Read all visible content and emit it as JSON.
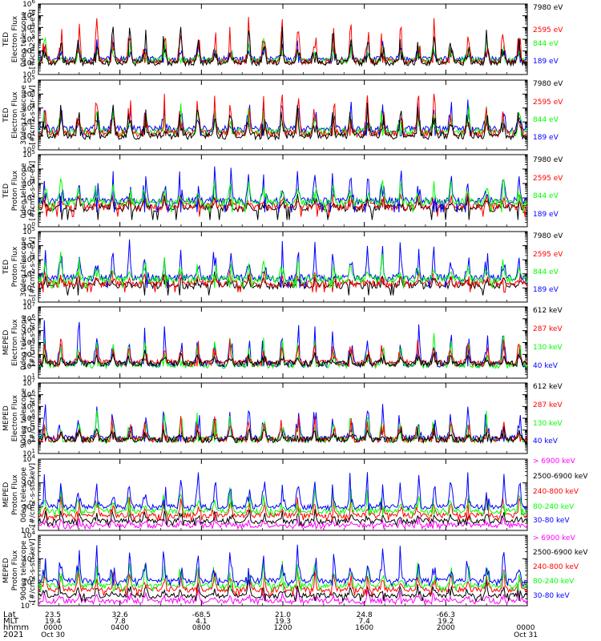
{
  "colors": {
    "black": "#000000",
    "red": "#ff0000",
    "green": "#00ff00",
    "blue": "#0000ff",
    "magenta": "#ff00ff"
  },
  "chart_data": [
    {
      "type": "line",
      "instrument": "TED",
      "quantity": "Electron Flux",
      "telescope": "0deg telescope",
      "ylabel": [
        "TED",
        "Electron Flux",
        "0deg telescope",
        "[#/cm2-s-str-eV]"
      ],
      "yscale": "log",
      "ylim": [
        1,
        1000000
      ],
      "yticks": [
        "10^0",
        "10^1",
        "10^2",
        "10^3",
        "10^4",
        "10^5",
        "10^6"
      ],
      "legend": [
        {
          "label": "7980 eV",
          "color": "black"
        },
        {
          "label": "2595 eV",
          "color": "red"
        },
        {
          "label": "844 eV",
          "color": "green"
        },
        {
          "label": "189 eV",
          "color": "blue"
        }
      ],
      "series": [
        {
          "name": "189 eV",
          "color": "blue",
          "base": 20,
          "peak": 1500,
          "floor": 10
        },
        {
          "name": "844 eV",
          "color": "green",
          "base": 15,
          "peak": 1200,
          "floor": 10
        },
        {
          "name": "2595 eV",
          "color": "red",
          "base": 12,
          "peak": 100000,
          "floor": 10
        },
        {
          "name": "7980 eV",
          "color": "black",
          "base": 10,
          "peak": 20000,
          "floor": 10
        }
      ]
    },
    {
      "type": "line",
      "instrument": "TED",
      "quantity": "Electron Flux",
      "telescope": "30deg telescope",
      "ylabel": [
        "TED",
        "Electron Flux",
        "30deg telescope",
        "[#/cm2-s-str-eV]"
      ],
      "yscale": "log",
      "ylim": [
        1,
        100000
      ],
      "yticks": [
        "10^0",
        "10^1",
        "10^2",
        "10^3",
        "10^4",
        "10^5"
      ],
      "legend": [
        {
          "label": "7980 eV",
          "color": "black"
        },
        {
          "label": "2595 eV",
          "color": "red"
        },
        {
          "label": "844 eV",
          "color": "green"
        },
        {
          "label": "189 eV",
          "color": "blue"
        }
      ],
      "series": [
        {
          "name": "189 eV",
          "color": "blue",
          "base": 30,
          "peak": 5000,
          "floor": 10
        },
        {
          "name": "844 eV",
          "color": "green",
          "base": 20,
          "peak": 2000,
          "floor": 10
        },
        {
          "name": "2595 eV",
          "color": "red",
          "base": 15,
          "peak": 20000,
          "floor": 10
        },
        {
          "name": "7980 eV",
          "color": "black",
          "base": 10,
          "peak": 5000,
          "floor": 10
        }
      ]
    },
    {
      "type": "line",
      "instrument": "TED",
      "quantity": "Proton Flux",
      "telescope": "0deg telescope",
      "ylabel": [
        "TED",
        "Proton Flux",
        "0deg telescope",
        "[#/cm2-s-str-eV]"
      ],
      "yscale": "log",
      "ylim": [
        1,
        100000
      ],
      "yticks": [
        "10^0",
        "10^1",
        "10^2",
        "10^3",
        "10^4",
        "10^5"
      ],
      "legend": [
        {
          "label": "7980 eV",
          "color": "black"
        },
        {
          "label": "2595 eV",
          "color": "red"
        },
        {
          "label": "844 eV",
          "color": "green"
        },
        {
          "label": "189 eV",
          "color": "blue"
        }
      ],
      "series": [
        {
          "name": "7980 eV",
          "color": "black",
          "base": 20,
          "peak": 200,
          "floor": 3
        },
        {
          "name": "2595 eV",
          "color": "red",
          "base": 25,
          "peak": 300,
          "floor": 5
        },
        {
          "name": "189 eV",
          "color": "blue",
          "base": 60,
          "peak": 20000,
          "floor": 10
        },
        {
          "name": "844 eV",
          "color": "green",
          "base": 50,
          "peak": 3000,
          "floor": 10
        }
      ]
    },
    {
      "type": "line",
      "instrument": "TED",
      "quantity": "Proton Flux",
      "telescope": "30deg telescope",
      "ylabel": [
        "TED",
        "Proton Flux",
        "30deg telescope",
        "[#/cm2-s-str-eV]"
      ],
      "yscale": "log",
      "ylim": [
        1,
        100000
      ],
      "yticks": [
        "10^0",
        "10^1",
        "10^2",
        "10^3",
        "10^4",
        "10^5"
      ],
      "legend": [
        {
          "label": "7980 eV",
          "color": "black"
        },
        {
          "label": "2595 eV",
          "color": "red"
        },
        {
          "label": "844 eV",
          "color": "green"
        },
        {
          "label": "189 eV",
          "color": "blue"
        }
      ],
      "series": [
        {
          "name": "7980 eV",
          "color": "black",
          "base": 15,
          "peak": 100,
          "floor": 3
        },
        {
          "name": "2595 eV",
          "color": "red",
          "base": 20,
          "peak": 200,
          "floor": 5
        },
        {
          "name": "189 eV",
          "color": "blue",
          "base": 50,
          "peak": 20000,
          "floor": 10
        },
        {
          "name": "844 eV",
          "color": "green",
          "base": 40,
          "peak": 3000,
          "floor": 10
        }
      ]
    },
    {
      "type": "line",
      "instrument": "MEPED",
      "quantity": "Electron Flux",
      "telescope": "0deg telescope",
      "ylabel": [
        "MEPED",
        "Electron Flux",
        "0deg telescope",
        "[#/cm2-s-str]"
      ],
      "yscale": "log",
      "ylim": [
        10,
        10000000
      ],
      "yticks": [
        "10^1",
        "10^2",
        "10^3",
        "10^4",
        "10^5",
        "10^6",
        "10^7"
      ],
      "legend": [
        {
          "label": "612 keV",
          "color": "black"
        },
        {
          "label": "287 keV",
          "color": "red"
        },
        {
          "label": "130 keV",
          "color": "green"
        },
        {
          "label": "40 keV",
          "color": "blue"
        }
      ],
      "series": [
        {
          "name": "40 keV",
          "color": "blue",
          "base": 150,
          "peak": 2000000,
          "floor": 100
        },
        {
          "name": "130 keV",
          "color": "green",
          "base": 120,
          "peak": 50000,
          "floor": 100
        },
        {
          "name": "287 keV",
          "color": "red",
          "base": 200,
          "peak": 30000,
          "floor": 100
        },
        {
          "name": "612 keV",
          "color": "black",
          "base": 180,
          "peak": 2000,
          "floor": 100
        }
      ]
    },
    {
      "type": "line",
      "instrument": "MEPED",
      "quantity": "Electron Flux",
      "telescope": "90deg telescope",
      "ylabel": [
        "MEPED",
        "Electron Flux",
        "90deg telescope",
        "[#/cm2-s-str]"
      ],
      "yscale": "log",
      "ylim": [
        10,
        10000000
      ],
      "yticks": [
        "10^1",
        "10^2",
        "10^3",
        "10^4",
        "10^5",
        "10^6",
        "10^7"
      ],
      "legend": [
        {
          "label": "612 keV",
          "color": "black"
        },
        {
          "label": "287 keV",
          "color": "red"
        },
        {
          "label": "130 keV",
          "color": "green"
        },
        {
          "label": "40 keV",
          "color": "blue"
        }
      ],
      "series": [
        {
          "name": "40 keV",
          "color": "blue",
          "base": 200,
          "peak": 500000,
          "floor": 100
        },
        {
          "name": "130 keV",
          "color": "green",
          "base": 150,
          "peak": 100000,
          "floor": 100
        },
        {
          "name": "287 keV",
          "color": "red",
          "base": 150,
          "peak": 20000,
          "floor": 100
        },
        {
          "name": "612 keV",
          "color": "black",
          "base": 150,
          "peak": 3000,
          "floor": 100
        }
      ]
    },
    {
      "type": "line",
      "instrument": "MEPED",
      "quantity": "Proton Flux",
      "telescope": "0deg telescope",
      "ylabel": [
        "MEPED",
        "Proton Flux",
        "0deg telescope",
        "[#/cm2-s-str-keV]"
      ],
      "yscale": "log",
      "ylim": [
        0.01,
        100000
      ],
      "yticks": [
        "10^-2",
        "10^0",
        "10^2",
        "10^4"
      ],
      "legend": [
        {
          "label": "> 6900 keV",
          "color": "magenta"
        },
        {
          "label": "2500-6900 keV",
          "color": "black"
        },
        {
          "label": "240-800 keV",
          "color": "red"
        },
        {
          "label": "80-240 keV",
          "color": "green"
        },
        {
          "label": "30-80 keV",
          "color": "blue"
        }
      ],
      "series": [
        {
          "name": "> 6900 keV",
          "color": "magenta",
          "base": 0.03,
          "peak": 0.2,
          "floor": 0.015
        },
        {
          "name": "2500-6900 keV",
          "color": "black",
          "base": 0.08,
          "peak": 2,
          "floor": 0.03
        },
        {
          "name": "240-800 keV",
          "color": "red",
          "base": 0.3,
          "peak": 30,
          "floor": 0.1
        },
        {
          "name": "80-240 keV",
          "color": "green",
          "base": 0.8,
          "peak": 300,
          "floor": 0.3
        },
        {
          "name": "30-80 keV",
          "color": "blue",
          "base": 2,
          "peak": 10000,
          "floor": 1
        }
      ]
    },
    {
      "type": "line",
      "instrument": "MEPED",
      "quantity": "Proton Flux",
      "telescope": "90deg telescope",
      "ylabel": [
        "MEPED",
        "Proton Flux",
        "90deg telescope",
        "[#/cm2-s-str-keV]"
      ],
      "yscale": "log",
      "ylim": [
        0.01,
        100000
      ],
      "yticks": [
        "10^-2",
        "10^0",
        "10^2",
        "10^4"
      ],
      "legend": [
        {
          "label": "> 6900 keV",
          "color": "magenta"
        },
        {
          "label": "2500-6900 keV",
          "color": "black"
        },
        {
          "label": "240-800 keV",
          "color": "red"
        },
        {
          "label": "80-240 keV",
          "color": "green"
        },
        {
          "label": "30-80 keV",
          "color": "blue"
        }
      ],
      "series": [
        {
          "name": "> 6900 keV",
          "color": "magenta",
          "base": 0.03,
          "peak": 0.3,
          "floor": 0.015
        },
        {
          "name": "2500-6900 keV",
          "color": "black",
          "base": 0.1,
          "peak": 3,
          "floor": 0.03
        },
        {
          "name": "240-800 keV",
          "color": "red",
          "base": 0.4,
          "peak": 50,
          "floor": 0.1
        },
        {
          "name": "80-240 keV",
          "color": "green",
          "base": 1,
          "peak": 500,
          "floor": 0.3
        },
        {
          "name": "30-80 keV",
          "color": "blue",
          "base": 3,
          "peak": 20000,
          "floor": 1
        }
      ]
    }
  ],
  "x_axis": {
    "row_labels": [
      "Lat",
      "MLT",
      "hhmm",
      "2021"
    ],
    "tick_hours": [
      0,
      4,
      8,
      12,
      16,
      20,
      24
    ],
    "ticks": [
      {
        "lat": "23.5",
        "mlt": "19.4",
        "hhmm": "0000",
        "date": "Oct 30"
      },
      {
        "lat": "32.6",
        "mlt": "7.8",
        "hhmm": "0400",
        "date": ""
      },
      {
        "lat": "-68.5",
        "mlt": "4.1",
        "hhmm": "0800",
        "date": ""
      },
      {
        "lat": "21.0",
        "mlt": "19.3",
        "hhmm": "1200",
        "date": ""
      },
      {
        "lat": "24.8",
        "mlt": "7.4",
        "hhmm": "1600",
        "date": ""
      },
      {
        "lat": "-66.3",
        "mlt": "19.2",
        "hhmm": "2000",
        "date": ""
      },
      {
        "lat": "",
        "mlt": "",
        "hhmm": "0000",
        "date": "Oct 31"
      }
    ]
  }
}
